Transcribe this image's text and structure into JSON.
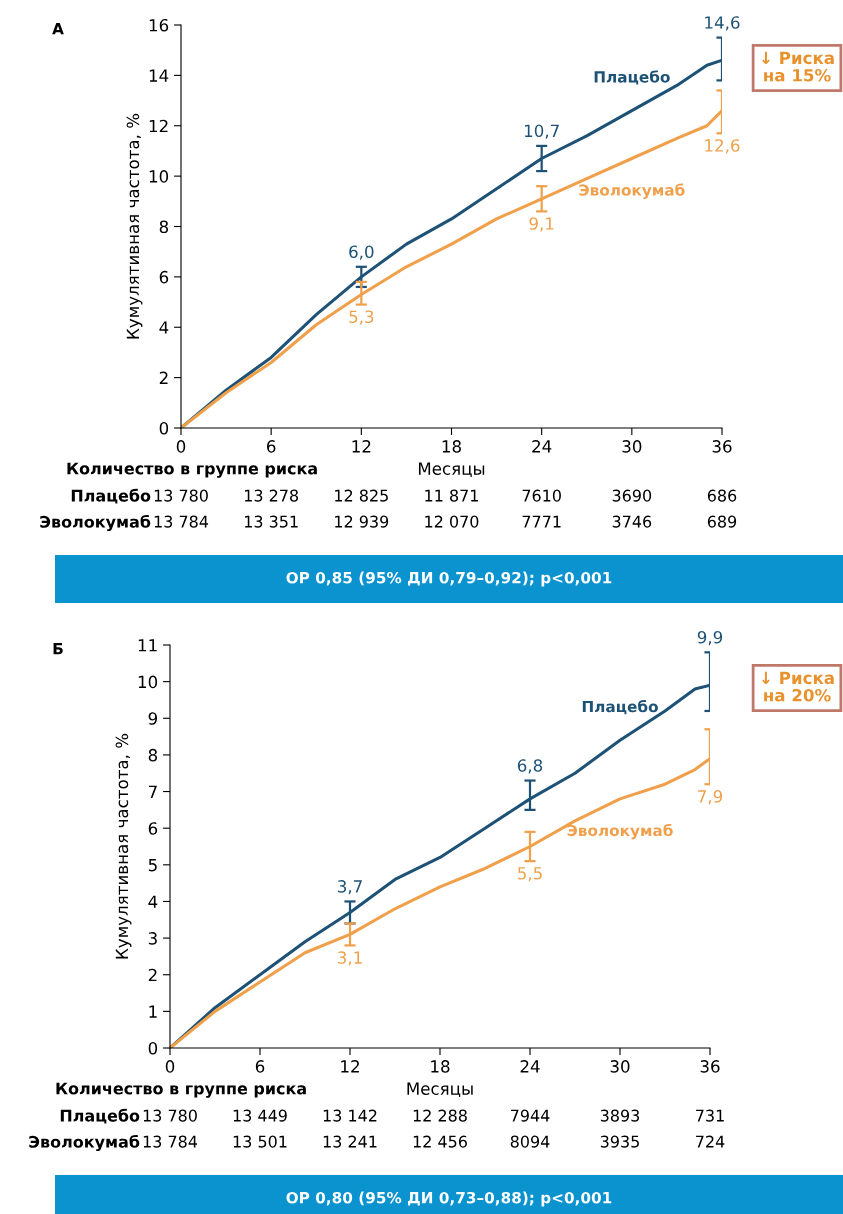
{
  "chart_data": [
    {
      "type": "line",
      "title": "А",
      "xlabel": "Месяцы",
      "ylabel": "Кумулятивная частота, %",
      "xlim": [
        0,
        36
      ],
      "xticks": [
        0,
        6,
        12,
        18,
        24,
        30,
        36
      ],
      "ylim": [
        0,
        16
      ],
      "yticks": [
        0,
        2,
        4,
        6,
        8,
        10,
        12,
        14,
        16
      ],
      "grid": false,
      "legend": false,
      "marker": "none",
      "line_style": "solid",
      "series": [
        {
          "name": "Плацебо",
          "color": "#1d5276",
          "x": [
            0,
            3,
            6,
            9,
            12,
            15,
            18,
            21,
            24,
            27,
            30,
            33,
            35,
            36
          ],
          "values": [
            0,
            1.5,
            2.8,
            4.5,
            6.0,
            7.3,
            8.3,
            9.5,
            10.7,
            11.6,
            12.6,
            13.6,
            14.4,
            14.6
          ],
          "errors": [
            null,
            null,
            null,
            null,
            [
              5.6,
              6.4
            ],
            null,
            null,
            null,
            [
              10.2,
              11.2
            ],
            null,
            null,
            null,
            null,
            [
              13.8,
              15.5
            ]
          ],
          "value_labels": [
            null,
            null,
            null,
            null,
            "6,0",
            null,
            null,
            null,
            "10,7",
            null,
            null,
            null,
            null,
            "14,6"
          ]
        },
        {
          "name": "Эволокумаб",
          "color": "#f0a04b",
          "x": [
            0,
            3,
            6,
            9,
            12,
            15,
            18,
            21,
            24,
            27,
            30,
            33,
            35,
            36
          ],
          "values": [
            0,
            1.4,
            2.6,
            4.1,
            5.3,
            6.4,
            7.3,
            8.3,
            9.1,
            9.9,
            10.7,
            11.5,
            12.0,
            12.6
          ],
          "errors": [
            null,
            null,
            null,
            null,
            [
              4.9,
              5.8
            ],
            null,
            null,
            null,
            [
              8.6,
              9.6
            ],
            null,
            null,
            null,
            null,
            [
              11.7,
              13.4
            ]
          ],
          "value_labels": [
            null,
            null,
            null,
            null,
            "5,3",
            null,
            null,
            null,
            "9,1",
            null,
            null,
            null,
            null,
            "12,6"
          ]
        }
      ],
      "annotations": [
        "↓ Риска\nна 15%",
        "ОР 0,85 (95% ДИ 0,79–0,92); p<0,001",
        "Количество в группе риска",
        "Плацебо",
        "13 780",
        "13 278",
        "12 825",
        "11 871",
        "7610",
        "3690",
        "686",
        "Эволокумаб",
        "13 784",
        "13 351",
        "12 939",
        "12 070",
        "7771",
        "3746",
        "689"
      ]
    },
    {
      "type": "line",
      "title": "Б",
      "xlabel": "Месяцы",
      "ylabel": "Кумулятивная частота, %",
      "xlim": [
        0,
        36
      ],
      "xticks": [
        0,
        6,
        12,
        18,
        24,
        30,
        36
      ],
      "ylim": [
        0,
        11
      ],
      "yticks": [
        0,
        1,
        2,
        3,
        4,
        5,
        6,
        7,
        8,
        9,
        10,
        11
      ],
      "grid": false,
      "legend": false,
      "marker": "none",
      "line_style": "solid",
      "series": [
        {
          "name": "Плацебо",
          "color": "#1d5276",
          "x": [
            0,
            3,
            6,
            9,
            12,
            15,
            18,
            21,
            24,
            27,
            30,
            33,
            35,
            36
          ],
          "values": [
            0,
            1.1,
            2.0,
            2.9,
            3.7,
            4.6,
            5.2,
            6.0,
            6.8,
            7.5,
            8.4,
            9.2,
            9.8,
            9.9
          ],
          "errors": [
            null,
            null,
            null,
            null,
            [
              3.4,
              4.0
            ],
            null,
            null,
            null,
            [
              6.5,
              7.3
            ],
            null,
            null,
            null,
            null,
            [
              9.2,
              10.8
            ]
          ],
          "value_labels": [
            null,
            null,
            null,
            null,
            "3,7",
            null,
            null,
            null,
            "6,8",
            null,
            null,
            null,
            null,
            "9,9"
          ]
        },
        {
          "name": "Эволокумаб",
          "color": "#f0a04b",
          "x": [
            0,
            3,
            6,
            9,
            12,
            15,
            18,
            21,
            24,
            27,
            30,
            33,
            35,
            36
          ],
          "values": [
            0,
            1.0,
            1.8,
            2.6,
            3.1,
            3.8,
            4.4,
            4.9,
            5.5,
            6.2,
            6.8,
            7.2,
            7.6,
            7.9
          ],
          "errors": [
            null,
            null,
            null,
            null,
            [
              2.8,
              3.4
            ],
            null,
            null,
            null,
            [
              5.1,
              5.9
            ],
            null,
            null,
            null,
            null,
            [
              7.2,
              8.7
            ]
          ],
          "value_labels": [
            null,
            null,
            null,
            null,
            "3,1",
            null,
            null,
            null,
            "5,5",
            null,
            null,
            null,
            null,
            "7,9"
          ]
        }
      ],
      "annotations": [
        "↓ Риска\nна 20%",
        "ОР 0,80 (95% ДИ 0,73–0,88); p<0,001",
        "Количество в группе риска",
        "Плацебо",
        "13 780",
        "13 449",
        "13 142",
        "12 288",
        "7944",
        "3893",
        "731",
        "Эволокумаб",
        "13 784",
        "13 501",
        "13 241",
        "12 456",
        "8094",
        "3935",
        "724"
      ]
    }
  ]
}
